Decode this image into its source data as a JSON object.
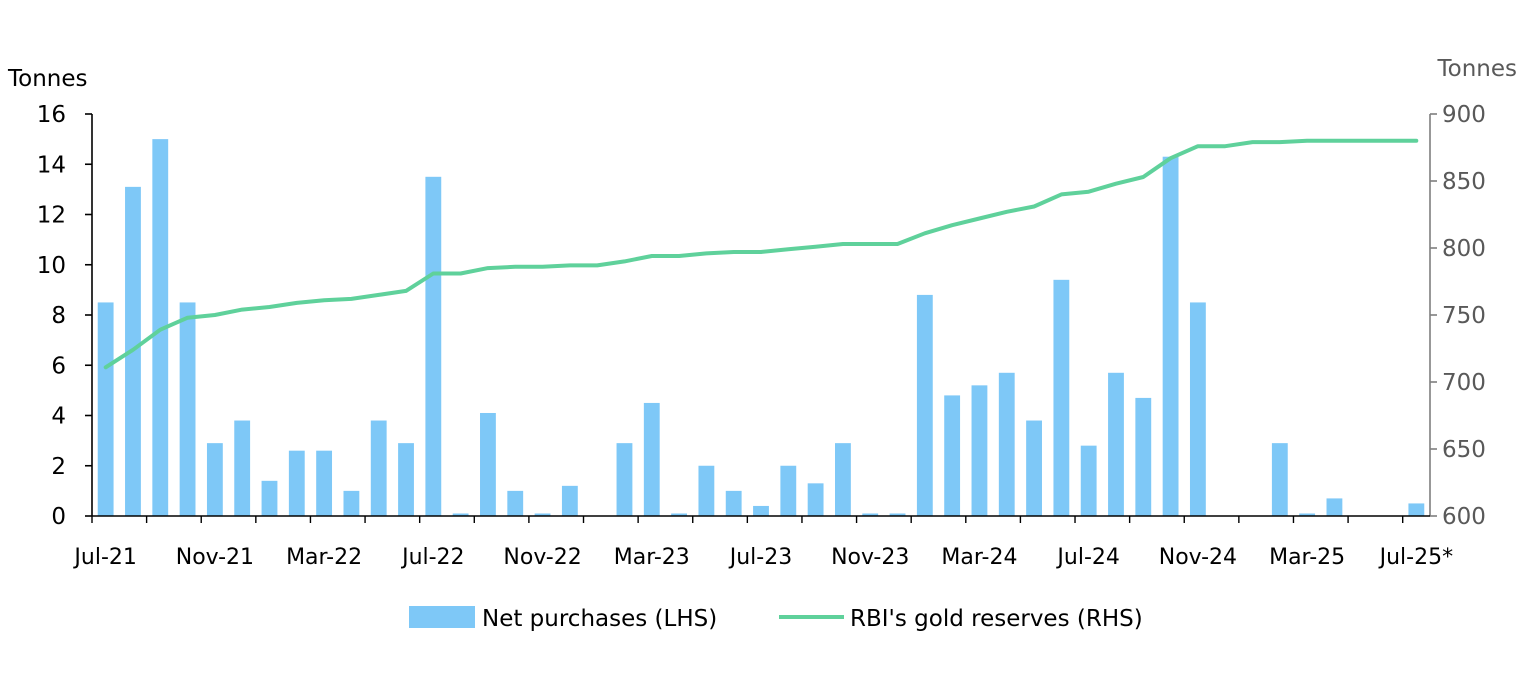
{
  "chart_data": {
    "type": "bar+line",
    "title": "",
    "left_axis": {
      "label": "Tonnes",
      "ylim": [
        0,
        16
      ],
      "ticks": [
        0,
        2,
        4,
        6,
        8,
        10,
        12,
        14,
        16
      ],
      "tick_labels": [
        "0",
        "2",
        "4",
        "6",
        "8",
        "10",
        "12",
        "14",
        "16"
      ]
    },
    "right_axis": {
      "label": "Tonnes",
      "ylim": [
        600,
        900
      ],
      "ticks": [
        600,
        650,
        700,
        750,
        800,
        850,
        900
      ],
      "tick_labels": [
        "600",
        "650",
        "700",
        "750",
        "800",
        "850",
        "900"
      ]
    },
    "x_tick_labels": [
      "Jul-21",
      "Nov-21",
      "Mar-22",
      "Jul-22",
      "Nov-22",
      "Mar-23",
      "Jul-23",
      "Nov-23",
      "Mar-24",
      "Jul-24",
      "Nov-24",
      "Mar-25",
      "Jul-25*"
    ],
    "x_tick_every": 4,
    "months": [
      "Jul-21",
      "Aug-21",
      "Sep-21",
      "Oct-21",
      "Nov-21",
      "Dec-21",
      "Jan-22",
      "Feb-22",
      "Mar-22",
      "Apr-22",
      "May-22",
      "Jun-22",
      "Jul-22",
      "Aug-22",
      "Sep-22",
      "Oct-22",
      "Nov-22",
      "Dec-22",
      "Jan-23",
      "Feb-23",
      "Mar-23",
      "Apr-23",
      "May-23",
      "Jun-23",
      "Jul-23",
      "Aug-23",
      "Sep-23",
      "Oct-23",
      "Nov-23",
      "Dec-23",
      "Jan-24",
      "Feb-24",
      "Mar-24",
      "Apr-24",
      "May-24",
      "Jun-24",
      "Jul-24",
      "Aug-24",
      "Sep-24",
      "Oct-24",
      "Nov-24",
      "Dec-24",
      "Jan-25",
      "Feb-25",
      "Mar-25",
      "Apr-25",
      "May-25",
      "Jun-25",
      "Jul-25"
    ],
    "series": [
      {
        "name": "Net purchases (LHS)",
        "type": "bar",
        "axis": "left",
        "color": "#7ec8f7",
        "values": [
          8.5,
          13.1,
          15.0,
          8.5,
          2.9,
          3.8,
          1.4,
          2.6,
          2.6,
          1.0,
          3.8,
          2.9,
          13.5,
          0.1,
          4.1,
          1.0,
          0.1,
          1.2,
          0.0,
          2.9,
          4.5,
          0.1,
          2.0,
          1.0,
          0.4,
          2.0,
          1.3,
          2.9,
          0.1,
          0.1,
          8.8,
          4.8,
          5.2,
          5.7,
          3.8,
          9.4,
          2.8,
          5.7,
          4.7,
          14.3,
          8.5,
          0.0,
          0.0,
          2.9,
          0.1,
          0.7,
          0.0,
          0.0,
          0.5
        ]
      },
      {
        "name": "RBI's gold reserves (RHS)",
        "type": "line",
        "axis": "right",
        "color": "#5fd19b",
        "values": [
          711,
          724,
          739,
          748,
          750,
          754,
          756,
          759,
          761,
          762,
          765,
          768,
          781,
          781,
          785,
          786,
          786,
          787,
          787,
          790,
          794,
          794,
          796,
          797,
          797,
          799,
          801,
          803,
          803,
          803,
          811,
          817,
          822,
          827,
          831,
          840,
          842,
          848,
          853,
          867,
          876,
          876,
          879,
          879,
          880,
          880,
          880,
          880,
          880
        ]
      }
    ],
    "legend": {
      "position": "bottom",
      "entries": [
        "Net purchases (LHS)",
        "RBI's gold reserves (RHS)"
      ]
    }
  }
}
